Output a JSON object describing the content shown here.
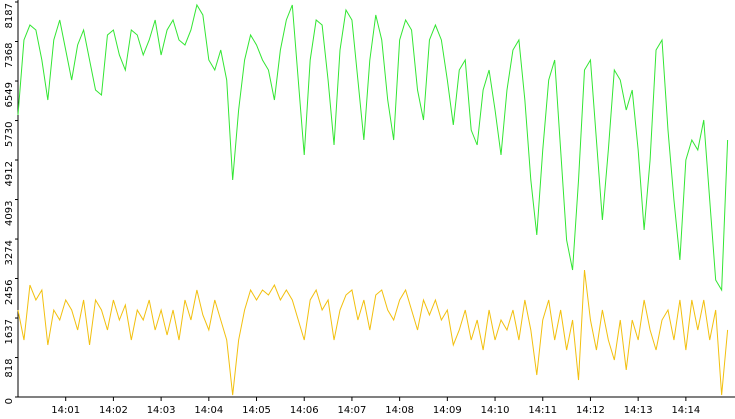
{
  "chart_data": {
    "type": "line",
    "xlim": [
      0,
      15.03
    ],
    "ylim": [
      0,
      8187
    ],
    "yticks": [
      0,
      818,
      1637,
      2456,
      3274,
      4093,
      4912,
      5730,
      6549,
      7368,
      8187
    ],
    "xticks": [
      {
        "value": 1,
        "label": "14:01"
      },
      {
        "value": 2,
        "label": "14:02"
      },
      {
        "value": 3,
        "label": "14:03"
      },
      {
        "value": 4,
        "label": "14:04"
      },
      {
        "value": 5,
        "label": "14:05"
      },
      {
        "value": 6,
        "label": "14:06"
      },
      {
        "value": 7,
        "label": "14:07"
      },
      {
        "value": 8,
        "label": "14:08"
      },
      {
        "value": 9,
        "label": "14:09"
      },
      {
        "value": 10,
        "label": "14:10"
      },
      {
        "value": 11,
        "label": "14:11"
      },
      {
        "value": 12,
        "label": "14:12"
      },
      {
        "value": 13,
        "label": "14:13"
      },
      {
        "value": 14,
        "label": "14:14"
      }
    ],
    "x": [
      0,
      0.125,
      0.25,
      0.375,
      0.5,
      0.625,
      0.75,
      0.875,
      1,
      1.125,
      1.25,
      1.375,
      1.5,
      1.625,
      1.75,
      1.875,
      2,
      2.125,
      2.25,
      2.375,
      2.5,
      2.625,
      2.75,
      2.875,
      3,
      3.125,
      3.25,
      3.375,
      3.5,
      3.625,
      3.75,
      3.875,
      4,
      4.125,
      4.25,
      4.375,
      4.5,
      4.625,
      4.75,
      4.875,
      5,
      5.125,
      5.25,
      5.375,
      5.5,
      5.625,
      5.75,
      5.875,
      6,
      6.125,
      6.25,
      6.375,
      6.5,
      6.625,
      6.75,
      6.875,
      7,
      7.125,
      7.25,
      7.375,
      7.5,
      7.625,
      7.75,
      7.875,
      8,
      8.125,
      8.25,
      8.375,
      8.5,
      8.625,
      8.75,
      8.875,
      9,
      9.125,
      9.25,
      9.375,
      9.5,
      9.625,
      9.75,
      9.875,
      10,
      10.125,
      10.25,
      10.375,
      10.5,
      10.625,
      10.75,
      10.875,
      11,
      11.125,
      11.25,
      11.375,
      11.5,
      11.625,
      11.75,
      11.875,
      12,
      12.125,
      12.25,
      12.375,
      12.5,
      12.625,
      12.75,
      12.875,
      13,
      13.125,
      13.25,
      13.375,
      13.5,
      13.625,
      13.75,
      13.875,
      14,
      14.125,
      14.25,
      14.375,
      14.5,
      14.625,
      14.75,
      14.875
    ],
    "series": [
      {
        "color": "#33e633",
        "values": [
          5845,
          7400,
          7710,
          7607,
          6985,
          6156,
          7400,
          7814,
          7192,
          6570,
          7296,
          7607,
          6985,
          6363,
          6260,
          7503,
          7607,
          7089,
          6777,
          7607,
          7503,
          7089,
          7400,
          7814,
          7089,
          7607,
          7814,
          7400,
          7296,
          7607,
          8125,
          7918,
          6985,
          6777,
          7192,
          6570,
          4498,
          5949,
          6985,
          7503,
          7296,
          6985,
          6777,
          6156,
          7192,
          7814,
          8125,
          6570,
          5016,
          6985,
          7814,
          7710,
          6570,
          5223,
          7192,
          8021,
          7814,
          6570,
          5327,
          6985,
          7918,
          7400,
          6156,
          5327,
          7400,
          7814,
          7607,
          6363,
          5741,
          7400,
          7710,
          7400,
          6570,
          5638,
          6777,
          6985,
          5534,
          5223,
          6363,
          6777,
          5949,
          5016,
          6363,
          7192,
          7400,
          6156,
          4498,
          3358,
          5120,
          6570,
          6985,
          5120,
          3254,
          2632,
          4498,
          6777,
          6985,
          5327,
          3669,
          5120,
          6777,
          6570,
          5949,
          6363,
          5120,
          3462,
          4912,
          7192,
          7400,
          5534,
          4083,
          2840,
          4912,
          5327,
          5120,
          5741,
          4083,
          2425,
          2218,
          5327
        ]
      },
      {
        "color": "#f2c00f",
        "values": [
          1803,
          1181,
          2321,
          2011,
          2218,
          1078,
          1803,
          1596,
          2011,
          1803,
          1389,
          2011,
          1078,
          2011,
          1803,
          1389,
          2011,
          1596,
          1907,
          1181,
          1803,
          1596,
          2011,
          1389,
          1803,
          1285,
          1803,
          1181,
          2011,
          1596,
          2218,
          1700,
          1389,
          2011,
          1596,
          1181,
          41,
          1181,
          1803,
          2218,
          2011,
          2218,
          2114,
          2321,
          2011,
          2218,
          2011,
          1596,
          1181,
          2011,
          2218,
          1803,
          2011,
          1181,
          1803,
          2114,
          2218,
          1596,
          2011,
          1389,
          2114,
          2218,
          1803,
          1596,
          2011,
          2218,
          1803,
          1389,
          2011,
          1700,
          2011,
          1596,
          1803,
          1078,
          1389,
          1803,
          1181,
          1596,
          974,
          1803,
          1181,
          1596,
          1389,
          1803,
          1181,
          2011,
          1389,
          456,
          1596,
          2011,
          1181,
          1803,
          974,
          1596,
          352,
          2632,
          1596,
          974,
          1803,
          1181,
          767,
          1596,
          560,
          1596,
          1181,
          2011,
          1389,
          974,
          1596,
          1803,
          1181,
          2011,
          974,
          2011,
          1389,
          2011,
          1181,
          1803,
          41,
          1389
        ]
      }
    ]
  }
}
